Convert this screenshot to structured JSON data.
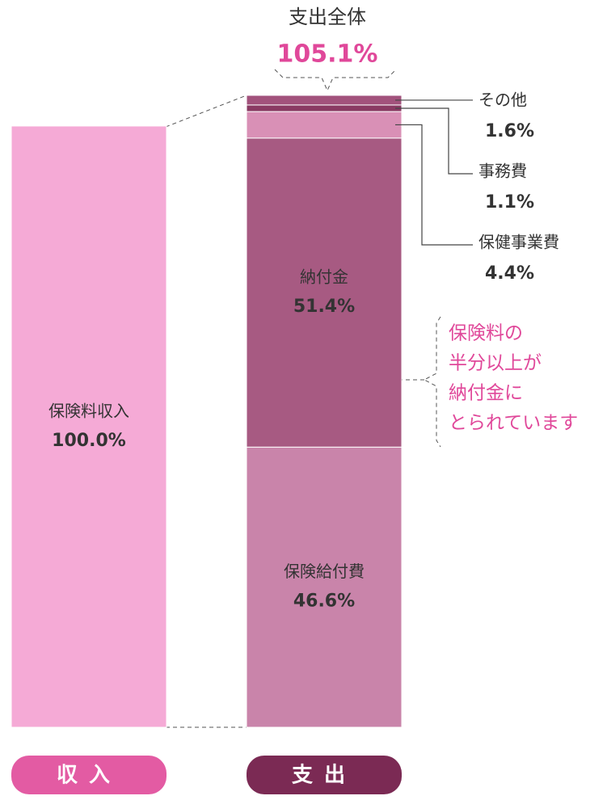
{
  "chart_data": {
    "type": "stacked_bar",
    "categories": [
      "収入",
      "支出"
    ],
    "category_colors": [
      "#e35ba3",
      "#7b2a54"
    ],
    "total": {
      "label": "支出全体",
      "value": 105.1,
      "value_label": "105.1%"
    },
    "series": [
      {
        "name": "保険料収入",
        "color": "#f5aad6",
        "values": [
          100.0,
          null
        ],
        "value_labels": [
          "100.0%",
          null
        ]
      },
      {
        "name": "保険給付費",
        "color": "#c984aa",
        "values": [
          null,
          46.6
        ],
        "value_labels": [
          null,
          "46.6%"
        ]
      },
      {
        "name": "納付金",
        "color": "#a75a82",
        "values": [
          null,
          51.4
        ],
        "value_labels": [
          null,
          "51.4%"
        ]
      },
      {
        "name": "保健事業費",
        "color": "#d990b6",
        "values": [
          null,
          4.4
        ],
        "value_labels": [
          null,
          "4.4%"
        ]
      },
      {
        "name": "事務費",
        "color": "#8a3a63",
        "values": [
          null,
          1.1
        ],
        "value_labels": [
          null,
          "1.1%"
        ]
      },
      {
        "name": "その他",
        "color": "#a2527c",
        "values": [
          null,
          1.6
        ],
        "value_labels": [
          null,
          "1.6%"
        ]
      }
    ],
    "annotation": {
      "lines": [
        "保険料の",
        "半分以上が",
        "納付金に",
        "とられています"
      ],
      "color": "#e0489a"
    }
  }
}
